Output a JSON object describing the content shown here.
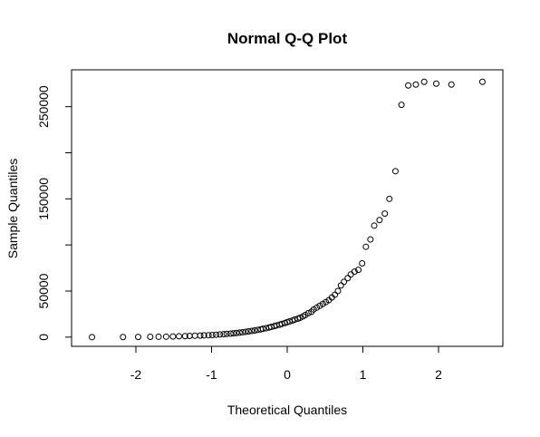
{
  "chart_data": {
    "type": "scatter",
    "title": "Normal Q-Q Plot",
    "xlabel": "Theoretical Quantiles",
    "ylabel": "Sample Quantiles",
    "xlim": [
      -2.85,
      2.85
    ],
    "ylim": [
      -10000,
      290000
    ],
    "grid": false,
    "legend": "none",
    "marker": "open-circle",
    "point_color": "#000000",
    "x_ticks": [
      {
        "value": -2,
        "label": "-2"
      },
      {
        "value": -1,
        "label": "-1"
      },
      {
        "value": 0,
        "label": "0"
      },
      {
        "value": 1,
        "label": "1"
      },
      {
        "value": 2,
        "label": "2"
      }
    ],
    "y_ticks": [
      {
        "value": 0,
        "label": "0"
      },
      {
        "value": 50000,
        "label": "50000"
      },
      {
        "value": 150000,
        "label": "150000"
      },
      {
        "value": 250000,
        "label": "250000"
      }
    ],
    "y_tick_marks": [
      0,
      50000,
      100000,
      150000,
      200000,
      250000
    ],
    "x": [
      -2.58,
      -2.17,
      -1.97,
      -1.81,
      -1.7,
      -1.6,
      -1.51,
      -1.43,
      -1.35,
      -1.29,
      -1.22,
      -1.15,
      -1.1,
      -1.04,
      -0.99,
      -0.94,
      -0.89,
      -0.84,
      -0.8,
      -0.75,
      -0.71,
      -0.67,
      -0.63,
      -0.59,
      -0.55,
      -0.51,
      -0.47,
      -0.43,
      -0.39,
      -0.35,
      -0.32,
      -0.28,
      -0.24,
      -0.21,
      -0.17,
      -0.14,
      -0.1,
      -0.07,
      -0.03,
      0.0,
      0.03,
      0.07,
      0.1,
      0.14,
      0.17,
      0.21,
      0.24,
      0.28,
      0.32,
      0.35,
      0.39,
      0.43,
      0.47,
      0.51,
      0.55,
      0.59,
      0.63,
      0.67,
      0.71,
      0.75,
      0.8,
      0.84,
      0.89,
      0.94,
      0.99,
      1.04,
      1.1,
      1.15,
      1.22,
      1.29,
      1.35,
      1.43,
      1.51,
      1.6,
      1.7,
      1.81,
      1.97,
      2.17,
      2.58
    ],
    "y": [
      0,
      100,
      200,
      300,
      400,
      500,
      700,
      900,
      1100,
      1300,
      1500,
      1700,
      1900,
      2100,
      2300,
      2600,
      2900,
      3200,
      3500,
      3800,
      4100,
      4500,
      4900,
      5300,
      5700,
      6200,
      6700,
      7200,
      7800,
      8400,
      9000,
      9700,
      10400,
      11100,
      11900,
      12700,
      13500,
      14400,
      15300,
      16200,
      17000,
      18000,
      19000,
      20000,
      21000,
      22500,
      24000,
      26000,
      27500,
      30000,
      32000,
      34000,
      36000,
      38000,
      40000,
      43000,
      46000,
      50000,
      56000,
      60000,
      64000,
      68000,
      71000,
      73000,
      80000,
      98000,
      106000,
      121000,
      127000,
      134000,
      150000,
      180000,
      252000,
      273000,
      274000,
      277000,
      275000,
      274000,
      277000
    ]
  }
}
